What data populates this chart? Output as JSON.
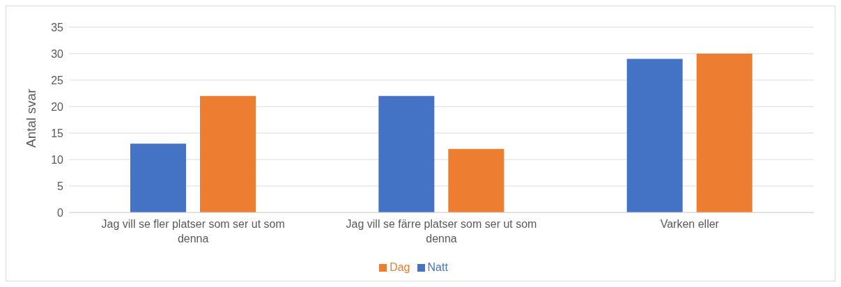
{
  "chart_data": {
    "type": "bar",
    "ylabel": "Antal svar",
    "categories": [
      "Jag vill se fler platser som ser ut som denna",
      "Jag vill se färre platser som ser ut som denna",
      "Varken eller"
    ],
    "series": [
      {
        "name": "Natt",
        "color": "#4472c4",
        "values": [
          13,
          22,
          29
        ]
      },
      {
        "name": "Dag",
        "color": "#ed7d31",
        "values": [
          22,
          12,
          30
        ]
      }
    ],
    "ylim": [
      0,
      35
    ],
    "yticks": [
      0,
      5,
      10,
      15,
      20,
      25,
      30,
      35
    ],
    "grid": "y",
    "legend": "bottom"
  }
}
